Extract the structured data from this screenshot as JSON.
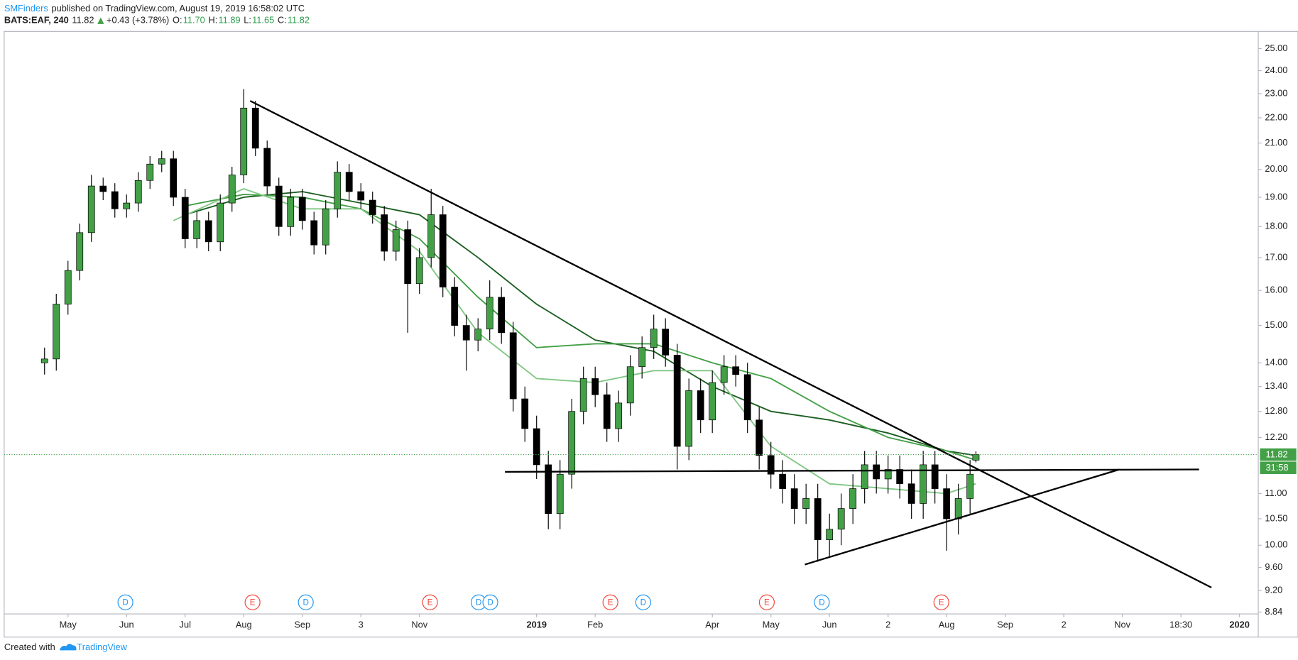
{
  "header": {
    "author": "SMFinders",
    "published": "published on TradingView.com, August 19, 2019 16:58:02 UTC",
    "symbol": "BATS:EAF, 240",
    "price": "11.82",
    "change": "+0.43 (+3.78%)",
    "open_label": "O:",
    "open": "11.70",
    "high_label": "H:",
    "high": "11.89",
    "low_label": "L:",
    "low": "11.65",
    "close_label": "C:",
    "close": "11.82"
  },
  "footer": {
    "created": "Created with",
    "brand": "TradingView"
  },
  "chart_data": {
    "type": "candlestick",
    "log_scale": true,
    "up_color": "#43a047",
    "down_color": "#000000",
    "x": [
      -0.4,
      -0.2,
      0,
      0.2,
      0.4,
      0.6,
      0.8,
      1,
      1.2,
      1.4,
      1.6,
      1.8,
      2,
      2.2,
      2.4,
      2.6,
      2.8,
      3,
      3.2,
      3.4,
      3.6,
      3.8,
      4,
      4.2,
      4.4,
      4.6,
      4.8,
      5,
      5.2,
      5.4,
      5.6,
      5.8,
      6,
      6.2,
      6.4,
      6.6,
      6.8,
      7,
      7.2,
      7.4,
      7.6,
      7.8,
      8,
      8.2,
      8.4,
      8.6,
      8.8,
      9,
      9.2,
      9.4,
      9.6,
      9.8,
      10,
      10.2,
      10.4,
      10.6,
      10.8,
      11,
      11.2,
      11.4,
      11.6,
      11.8,
      12,
      12.2,
      12.4,
      12.6,
      12.8,
      13,
      13.2,
      13.4,
      13.6,
      13.8,
      14,
      14.2,
      14.4,
      14.6,
      14.8,
      15,
      15.2,
      15.4,
      15.5
    ],
    "open": [
      14.0,
      14.1,
      15.6,
      16.6,
      17.8,
      19.4,
      19.2,
      18.6,
      18.8,
      19.6,
      20.2,
      20.4,
      19.0,
      17.6,
      18.2,
      17.5,
      18.8,
      19.8,
      22.4,
      20.8,
      19.4,
      18.0,
      19.0,
      18.2,
      17.4,
      18.6,
      19.9,
      19.2,
      18.9,
      18.4,
      17.2,
      17.9,
      16.2,
      17.0,
      18.4,
      16.1,
      15.0,
      14.6,
      14.9,
      15.8,
      14.8,
      13.1,
      12.4,
      11.6,
      10.6,
      11.4,
      12.8,
      13.6,
      13.2,
      12.4,
      13.0,
      13.9,
      14.4,
      14.9,
      14.2,
      12.0,
      13.3,
      12.6,
      13.5,
      13.9,
      13.7,
      12.6,
      11.8,
      11.4,
      11.1,
      10.7,
      10.9,
      10.1,
      10.3,
      10.7,
      11.1,
      11.6,
      11.3,
      11.5,
      11.2,
      10.8,
      11.6,
      11.1,
      10.5,
      10.9,
      11.7
    ],
    "high": [
      14.4,
      15.9,
      16.9,
      18.1,
      19.8,
      19.7,
      19.5,
      19.1,
      19.9,
      20.5,
      20.7,
      20.7,
      19.3,
      18.5,
      18.5,
      19.1,
      20.1,
      23.2,
      22.7,
      21.1,
      19.7,
      19.3,
      19.3,
      18.5,
      18.9,
      20.3,
      20.2,
      19.5,
      19.2,
      18.7,
      18.2,
      18.2,
      17.3,
      19.3,
      18.7,
      16.4,
      15.3,
      15.2,
      16.3,
      16.1,
      15.1,
      13.4,
      12.7,
      11.9,
      11.7,
      13.1,
      13.9,
      13.9,
      13.5,
      13.3,
      14.2,
      14.7,
      15.3,
      15.2,
      14.5,
      13.6,
      13.6,
      13.8,
      14.2,
      14.2,
      14.0,
      12.9,
      12.1,
      11.7,
      11.4,
      11.2,
      11.2,
      10.6,
      11.0,
      11.4,
      11.9,
      11.9,
      11.8,
      11.8,
      11.5,
      11.9,
      11.9,
      11.4,
      11.2,
      11.7,
      11.89
    ],
    "low": [
      13.7,
      13.8,
      15.3,
      16.3,
      17.5,
      18.9,
      18.3,
      18.3,
      18.5,
      19.3,
      19.9,
      18.7,
      17.3,
      17.3,
      17.2,
      17.2,
      18.5,
      19.5,
      20.5,
      19.1,
      17.7,
      17.7,
      17.9,
      17.1,
      17.1,
      18.3,
      18.9,
      18.6,
      18.1,
      16.9,
      16.9,
      14.8,
      15.9,
      16.7,
      15.8,
      14.7,
      13.8,
      14.3,
      14.6,
      14.5,
      12.8,
      12.1,
      11.3,
      10.3,
      10.3,
      11.1,
      12.5,
      12.9,
      12.1,
      12.1,
      12.7,
      13.6,
      14.1,
      13.9,
      11.5,
      11.7,
      12.3,
      12.3,
      13.2,
      13.4,
      12.3,
      11.5,
      11.1,
      10.8,
      10.4,
      10.4,
      9.7,
      9.8,
      10.0,
      10.4,
      10.8,
      11.0,
      11.0,
      10.9,
      10.5,
      10.5,
      10.8,
      9.9,
      10.2,
      10.6,
      11.65
    ],
    "close": [
      14.1,
      15.6,
      16.6,
      17.8,
      19.4,
      19.2,
      18.6,
      18.8,
      19.6,
      20.2,
      20.4,
      19.0,
      17.6,
      18.2,
      17.5,
      18.8,
      19.8,
      22.4,
      20.8,
      19.4,
      18.0,
      19.0,
      18.2,
      17.4,
      18.6,
      19.9,
      19.2,
      18.9,
      18.4,
      17.2,
      17.9,
      16.2,
      17.0,
      18.4,
      16.1,
      15.0,
      14.6,
      14.9,
      15.8,
      14.8,
      13.1,
      12.4,
      11.6,
      10.6,
      11.4,
      12.8,
      13.6,
      13.2,
      12.4,
      13.0,
      13.9,
      14.4,
      14.9,
      14.2,
      12.0,
      13.3,
      12.6,
      13.5,
      13.9,
      13.7,
      12.6,
      11.8,
      11.4,
      11.1,
      10.7,
      10.9,
      10.1,
      10.3,
      10.7,
      11.1,
      11.6,
      11.3,
      11.5,
      11.2,
      10.8,
      11.6,
      11.1,
      10.5,
      10.9,
      11.4,
      11.82
    ],
    "moving_averages": [
      {
        "color": "#1b5e20",
        "x": [
          2,
          3,
          4,
          5,
          6,
          7,
          8,
          9,
          10,
          11,
          12,
          13,
          14,
          15,
          15.5
        ],
        "values": [
          18.4,
          19.0,
          19.2,
          18.8,
          18.4,
          17.0,
          15.6,
          14.6,
          14.3,
          13.4,
          12.8,
          12.6,
          12.3,
          11.9,
          11.8
        ]
      },
      {
        "color": "#43a047",
        "x": [
          2,
          3,
          4,
          5,
          6,
          7,
          8,
          9,
          10,
          11,
          12,
          13,
          14,
          15,
          15.5
        ],
        "values": [
          18.7,
          19.1,
          19.0,
          18.6,
          17.6,
          15.8,
          14.4,
          14.5,
          14.5,
          14.0,
          13.6,
          12.8,
          12.2,
          11.9,
          11.7
        ]
      },
      {
        "color": "#81c784",
        "x": [
          1.8,
          3,
          4,
          5,
          6,
          7,
          8,
          9,
          10,
          11,
          12,
          13,
          14,
          15,
          15.5
        ],
        "values": [
          18.2,
          19.3,
          18.6,
          18.6,
          17.2,
          14.8,
          13.6,
          13.5,
          13.8,
          13.8,
          12.0,
          11.2,
          11.1,
          11.0,
          11.2
        ]
      }
    ],
    "trendlines": [
      {
        "x": [
          3.11,
          19.52
        ],
        "values": [
          22.7,
          9.25
        ]
      },
      {
        "x": [
          7.46,
          19.31
        ],
        "values": [
          11.45,
          11.5
        ]
      },
      {
        "x": [
          12.58,
          17.95
        ],
        "values": [
          9.65,
          11.5
        ]
      }
    ],
    "last_price": 11.82,
    "last_price_label": "11.82",
    "countdown": "31:58",
    "events": [
      {
        "x": 0.98,
        "label": "D"
      },
      {
        "x": 3.15,
        "label": "E"
      },
      {
        "x": 4.06,
        "label": "D"
      },
      {
        "x": 6.18,
        "label": "E"
      },
      {
        "x": 7.01,
        "label": "D"
      },
      {
        "x": 7.21,
        "label": "D"
      },
      {
        "x": 9.26,
        "label": "E"
      },
      {
        "x": 9.82,
        "label": "D"
      },
      {
        "x": 11.93,
        "label": "E"
      },
      {
        "x": 12.87,
        "label": "D"
      },
      {
        "x": 14.91,
        "label": "E"
      }
    ],
    "event_colors": {
      "D": "#2196f3",
      "E": "#f44336"
    },
    "xlim": [
      -1.09,
      20.32
    ],
    "xticks": [
      {
        "value": 0,
        "label": "May"
      },
      {
        "value": 1,
        "label": "Jun"
      },
      {
        "value": 2,
        "label": "Jul"
      },
      {
        "value": 3,
        "label": "Aug"
      },
      {
        "value": 4,
        "label": "Sep"
      },
      {
        "value": 5,
        "label": "3"
      },
      {
        "value": 6,
        "label": "Nov"
      },
      {
        "value": 8,
        "label": "2019"
      },
      {
        "value": 9,
        "label": "Feb"
      },
      {
        "value": 11,
        "label": "Apr"
      },
      {
        "value": 12,
        "label": "May"
      },
      {
        "value": 13,
        "label": "Jun"
      },
      {
        "value": 14,
        "label": "2"
      },
      {
        "value": 15,
        "label": "Aug"
      },
      {
        "value": 16,
        "label": "Sep"
      },
      {
        "value": 17,
        "label": "2"
      },
      {
        "value": 18,
        "label": "Nov"
      },
      {
        "value": 19,
        "label": "18:30"
      },
      {
        "value": 20,
        "label": "2020"
      }
    ],
    "ylim": [
      8.81,
      25.8
    ],
    "yticks": [
      {
        "value": 25,
        "label": "25.00"
      },
      {
        "value": 24,
        "label": "24.00"
      },
      {
        "value": 23,
        "label": "23.00"
      },
      {
        "value": 22,
        "label": "22.00"
      },
      {
        "value": 21,
        "label": "21.00"
      },
      {
        "value": 20,
        "label": "20.00"
      },
      {
        "value": 19,
        "label": "19.00"
      },
      {
        "value": 18,
        "label": "18.00"
      },
      {
        "value": 17,
        "label": "17.00"
      },
      {
        "value": 16,
        "label": "16.00"
      },
      {
        "value": 15,
        "label": "15.00"
      },
      {
        "value": 14,
        "label": "14.00"
      },
      {
        "value": 13.4,
        "label": "13.40"
      },
      {
        "value": 12.8,
        "label": "12.80"
      },
      {
        "value": 12.2,
        "label": "12.20"
      },
      {
        "value": 11,
        "label": "11.00"
      },
      {
        "value": 10.5,
        "label": "10.50"
      },
      {
        "value": 10,
        "label": "10.00"
      },
      {
        "value": 9.6,
        "label": "9.60"
      },
      {
        "value": 9.2,
        "label": "9.20"
      },
      {
        "value": 8.84,
        "label": "8.84"
      }
    ]
  }
}
